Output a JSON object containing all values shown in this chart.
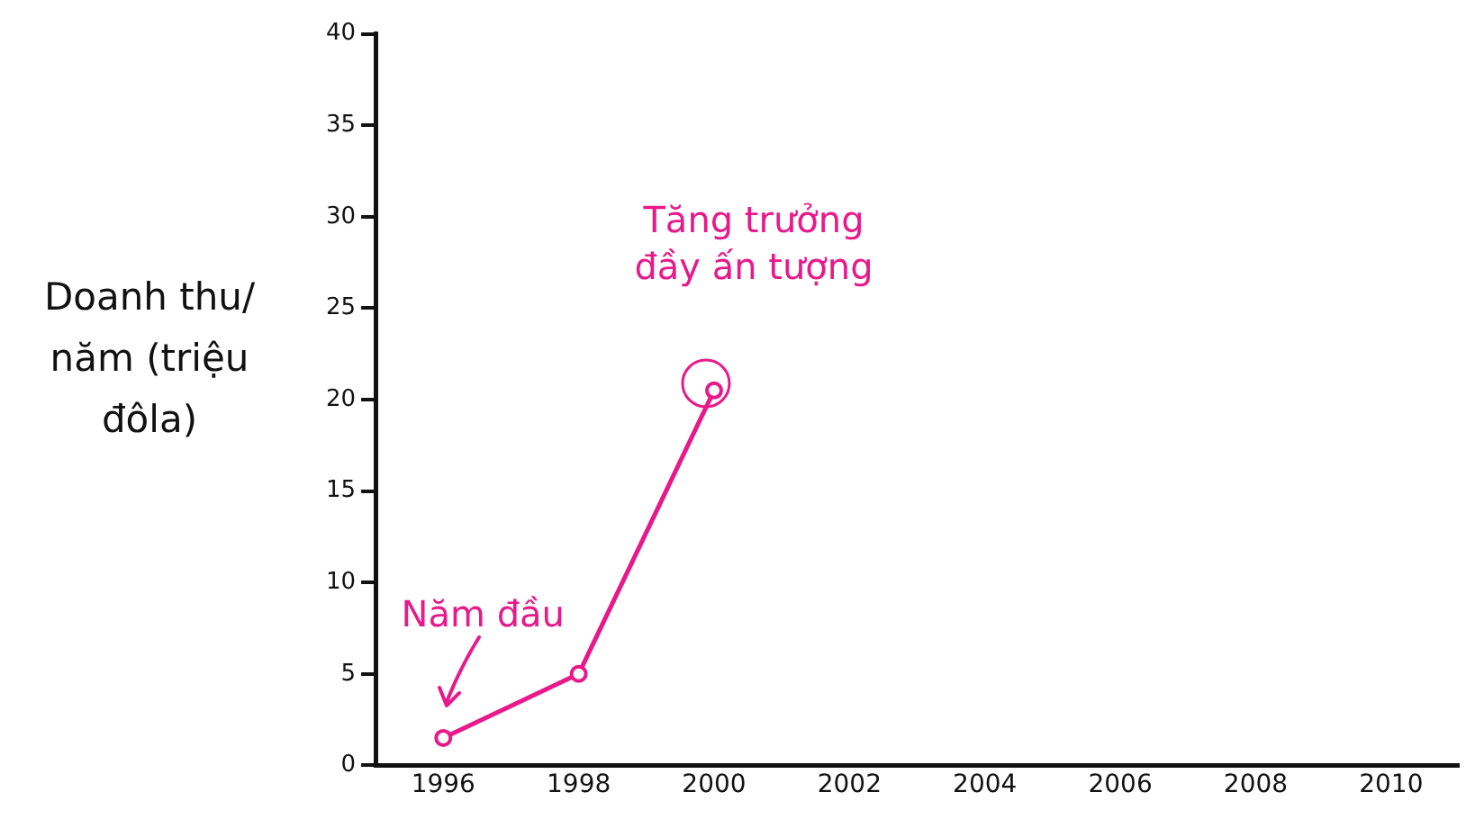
{
  "chart_data": {
    "type": "line",
    "ylabel": "Doanh thu/ năm (triệu đôla)",
    "x": [
      1996,
      1998,
      2000
    ],
    "series": [
      {
        "color": "#e8198b",
        "values": [
          1.5,
          5,
          20.5
        ]
      }
    ],
    "xlim": [
      1995,
      2011
    ],
    "xticks": [
      1996,
      1998,
      2000,
      2002,
      2004,
      2006,
      2008,
      2010
    ],
    "ylim": [
      0,
      40
    ],
    "yticks": [
      0,
      5,
      10,
      15,
      20,
      25,
      30,
      35,
      40
    ],
    "marker": "circle",
    "annotations": [
      {
        "text": "Năm đầu",
        "x": 1996,
        "y": 1.5
      },
      {
        "text": "Tăng trưởng đầy ấn tượng",
        "x": 2000,
        "y": 20.5
      }
    ]
  }
}
